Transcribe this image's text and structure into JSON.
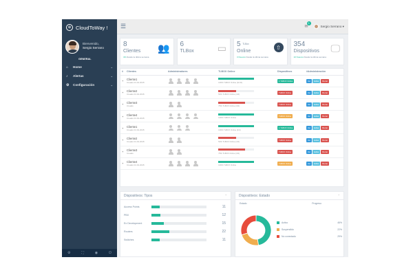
{
  "app": {
    "title": "CloudToWay !"
  },
  "profile": {
    "welcome": "Bienvenido,",
    "name": "Sergio Serrano"
  },
  "sidebar": {
    "section": "GENERAL",
    "items": [
      {
        "label": "Home",
        "icon": "home-icon",
        "glyph": "⌂"
      },
      {
        "label": "Alertas",
        "icon": "bell-icon",
        "glyph": "♪"
      },
      {
        "label": "Configuración",
        "icon": "gear-icon",
        "glyph": "⚙"
      }
    ],
    "footer_icons": [
      "gear-icon",
      "fullscreen-icon",
      "eye-icon",
      "power-icon"
    ]
  },
  "topbar": {
    "user": "Sergio Serrano",
    "notifications": "3"
  },
  "tiles": [
    {
      "num": "8",
      "label": "Clientes",
      "note_accent": "4%",
      "note": " Desde la última semana",
      "icon": "users-icon"
    },
    {
      "num": "6",
      "label": "TLBox",
      "note_accent": "",
      "note": "",
      "icon": "inbox-icon"
    },
    {
      "num": "5",
      "sub": "TLBox",
      "label": "Online",
      "note_accent": "3 Nuevos",
      "note": " Desde la última semana",
      "icon": "upload-icon"
    },
    {
      "num": "354",
      "label": "Dispositivos",
      "note_accent": "10 Nuevos",
      "note": " Desde la última semana",
      "icon": "monitor-icon"
    }
  ],
  "table": {
    "headers": [
      "#",
      "Clientes",
      "Administradores",
      "TLBOX Online",
      "Dispositivos",
      "#Administración"
    ],
    "rows": [
      {
        "exp": "+",
        "name": "Cliente1",
        "date": "Creado 01.01.2015",
        "admins": 4,
        "progress": 100,
        "bar_label": "100% TLBOX Online (11/11)",
        "status": "1 TLBOX Online",
        "status_color": "#26b99a",
        "actions": [
          "Ver",
          "Editar",
          "Borrar"
        ]
      },
      {
        "exp": "+",
        "name": "Cliente2",
        "date": "Creado 01.01.2015",
        "admins": 4,
        "progress": 50,
        "bar_label": "50% TLBOX Online (1/2)",
        "status": "TLBOX Online",
        "status_color": "#d9534f",
        "actions": [
          "Ver",
          "Editar",
          "Borrar"
        ]
      },
      {
        "exp": "+",
        "name": "Cliente3",
        "date": "Creado",
        "admins": 2,
        "progress": 75,
        "bar_label": "75% TLBOX Online (3/4)",
        "status": "TLBOX Online",
        "status_color": "#d9534f",
        "actions": [
          "Ver",
          "Editar",
          "Borrar"
        ]
      },
      {
        "exp": "+",
        "name": "Cliente4",
        "date": "Creado 01.01.2015",
        "admins": 4,
        "progress": 100,
        "bar_label": "100% TLBOX Online",
        "status": "TLBOX Online",
        "status_color": "#f0ad4e",
        "actions": [
          "Ver",
          "Editar",
          "Borrar"
        ]
      },
      {
        "exp": "+",
        "name": "Cliente1",
        "date": "Creado 01.01.2015",
        "admins": 3,
        "progress": 100,
        "bar_label": "100% TLBOX Online (4/4)",
        "status": "1 TLBOX Online",
        "status_color": "#26b99a",
        "actions": [
          "Ver",
          "Editar",
          "Borrar"
        ]
      },
      {
        "exp": "+",
        "name": "Cliente2",
        "date": "Creado 01.01.2015",
        "admins": 2,
        "progress": 50,
        "bar_label": "50% TLBOX Online (1/2)",
        "status": "TLBOX Online",
        "status_color": "#d9534f",
        "actions": [
          "Ver",
          "Editar",
          "Borrar"
        ]
      },
      {
        "exp": "+",
        "name": "Cliente3",
        "date": "Creado",
        "admins": 2,
        "progress": 75,
        "bar_label": "75% TLBOX Online (3/4)",
        "status": "TLBOX Online",
        "status_color": "#d9534f",
        "actions": [
          "Ver",
          "Editar",
          "Borrar"
        ]
      },
      {
        "exp": "+",
        "name": "Cliente4",
        "date": "Creado 01.01.2015",
        "admins": 4,
        "progress": 100,
        "bar_label": "100% TLBOX Online",
        "status": "TLBOX Online",
        "status_color": "#f0ad4e",
        "actions": [
          "Ver",
          "Editar",
          "Borrar"
        ]
      }
    ]
  },
  "devices_type": {
    "title": "Dispositivos: Tipos",
    "rows": [
      {
        "name": "Access Points",
        "value": 11,
        "fill": 0.15
      },
      {
        "name": "PBX",
        "value": 12,
        "fill": 0.16
      },
      {
        "name": "Ex Development",
        "value": 15,
        "fill": 0.22
      },
      {
        "name": "Routers",
        "value": 22,
        "fill": 0.32
      },
      {
        "name": "Switches",
        "value": 11,
        "fill": 0.15
      }
    ]
  },
  "devices_state": {
    "title": "Dispositivos: Estado",
    "col1": "Estado",
    "col2": "Progreso",
    "items": [
      {
        "label": "Activo",
        "value": "46%",
        "color": "#26b99a"
      },
      {
        "label": "Suspendido",
        "value": "22%",
        "color": "#f0ad4e"
      },
      {
        "label": "No conectado",
        "value": "29%",
        "color": "#e74c3c"
      }
    ]
  },
  "chart_data": {
    "type": "pie",
    "categories": [
      "Activo",
      "Suspendido",
      "No conectado"
    ],
    "values": [
      46,
      22,
      29
    ],
    "colors": [
      "#26b99a",
      "#f0ad4e",
      "#e74c3c"
    ],
    "title": ""
  }
}
